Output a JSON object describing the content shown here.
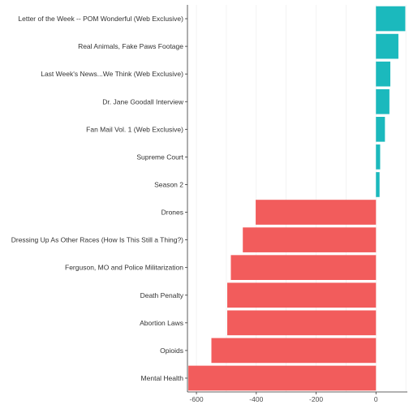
{
  "chart_data": {
    "type": "bar",
    "orientation": "horizontal",
    "categories": [
      "Letter of the Week -- POM Wonderful (Web Exclusive)",
      "Real Animals, Fake Paws Footage",
      "Last Week's News...We Think (Web Exclusive)",
      "Dr. Jane Goodall Interview",
      "Fan Mail Vol. 1 (Web Exclusive)",
      "Supreme Court",
      "Season 2",
      "Drones",
      "Dressing Up As Other Races (How Is This Still a Thing?)",
      "Ferguson, MO and Police Militarization",
      "Death Penalty",
      "Abortion Laws",
      "Opioids",
      "Mental Health"
    ],
    "values": [
      98,
      75,
      48,
      45,
      30,
      14,
      12,
      -402,
      -445,
      -485,
      -497,
      -497,
      -550,
      -627
    ],
    "title": "",
    "xlabel": "",
    "ylabel": "",
    "xlim": [
      -630,
      105
    ],
    "x_ticks": [
      -600,
      -400,
      -200,
      0
    ],
    "grid": true,
    "legend": "none",
    "colors": {
      "positive": "#1bb9bd",
      "negative": "#f25c5c",
      "grid": "#ebebeb",
      "axis": "#333333"
    }
  }
}
